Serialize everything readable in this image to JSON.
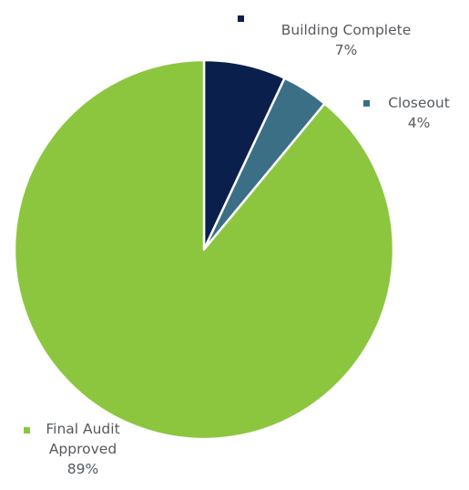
{
  "chart_data": {
    "type": "pie",
    "slices": [
      {
        "label_lines": [
          "Building Complete"
        ],
        "percent_label": "7%",
        "value": 7,
        "color": "#0b1f4d"
      },
      {
        "label_lines": [
          "Closeout"
        ],
        "percent_label": "4%",
        "value": 4,
        "color": "#3a6f86"
      },
      {
        "label_lines": [
          "Final Audit",
          "Approved"
        ],
        "percent_label": "89%",
        "value": 89,
        "color": "#8cc63f"
      }
    ],
    "start_angle_deg": 0,
    "direction": "clockwise",
    "slice_separator_color": "#ffffff"
  }
}
